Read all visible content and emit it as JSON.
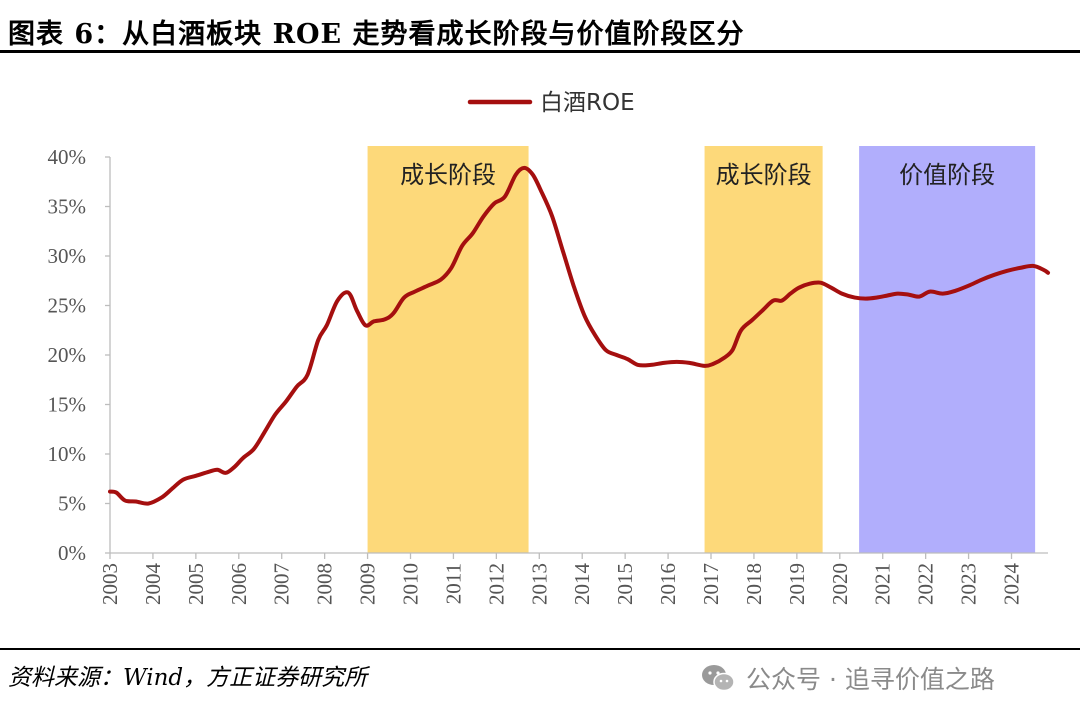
{
  "title": "图表 6：从白酒板块 ROE 走势看成长阶段与价值阶段区分",
  "source": "资料来源：Wind，方正证券研究所",
  "watermark": {
    "text": "公众号 · 追寻价值之路",
    "icon": "wechat-icon"
  },
  "chart_data": {
    "type": "line",
    "title": "",
    "xlabel": "",
    "ylabel": "",
    "xlim": [
      2003,
      2024.85
    ],
    "ylim": [
      0,
      40
    ],
    "x_ticks": [
      "2003",
      "2004",
      "2005",
      "2006",
      "2007",
      "2008",
      "2009",
      "2010",
      "2011",
      "2012",
      "2013",
      "2014",
      "2015",
      "2016",
      "2017",
      "2018",
      "2019",
      "2020",
      "2021",
      "2022",
      "2023",
      "2024"
    ],
    "y_ticks": [
      {
        "value": 0,
        "label": "0%"
      },
      {
        "value": 5,
        "label": "5%"
      },
      {
        "value": 10,
        "label": "10%"
      },
      {
        "value": 15,
        "label": "15%"
      },
      {
        "value": 20,
        "label": "20%"
      },
      {
        "value": 25,
        "label": "25%"
      },
      {
        "value": 30,
        "label": "30%"
      },
      {
        "value": 35,
        "label": "35%"
      },
      {
        "value": 40,
        "label": "40%"
      }
    ],
    "grid": false,
    "legend": {
      "position": "top-center"
    },
    "bands": [
      {
        "label": "成长阶段",
        "x0": 2009.0,
        "x1": 2012.75,
        "color": "#fdd97a"
      },
      {
        "label": "成长阶段",
        "x0": 2016.85,
        "x1": 2019.6,
        "color": "#fdd97a"
      },
      {
        "label": "价值阶段",
        "x0": 2020.45,
        "x1": 2024.55,
        "color": "#b1aefc"
      }
    ],
    "series": [
      {
        "name": "白酒ROE",
        "color": "#a50f0f",
        "points": [
          [
            2003.0,
            6.2
          ],
          [
            2003.15,
            6.1
          ],
          [
            2003.35,
            5.3
          ],
          [
            2003.6,
            5.2
          ],
          [
            2003.9,
            5.0
          ],
          [
            2004.2,
            5.6
          ],
          [
            2004.45,
            6.5
          ],
          [
            2004.7,
            7.4
          ],
          [
            2005.0,
            7.8
          ],
          [
            2005.3,
            8.2
          ],
          [
            2005.5,
            8.4
          ],
          [
            2005.7,
            8.1
          ],
          [
            2005.9,
            8.7
          ],
          [
            2006.1,
            9.6
          ],
          [
            2006.35,
            10.5
          ],
          [
            2006.6,
            12.2
          ],
          [
            2006.85,
            14.0
          ],
          [
            2007.1,
            15.3
          ],
          [
            2007.35,
            16.8
          ],
          [
            2007.6,
            18.0
          ],
          [
            2007.85,
            21.5
          ],
          [
            2008.05,
            23.0
          ],
          [
            2008.3,
            25.5
          ],
          [
            2008.55,
            26.3
          ],
          [
            2008.75,
            24.5
          ],
          [
            2008.95,
            23.0
          ],
          [
            2009.15,
            23.4
          ],
          [
            2009.4,
            23.6
          ],
          [
            2009.6,
            24.2
          ],
          [
            2009.85,
            25.8
          ],
          [
            2010.1,
            26.4
          ],
          [
            2010.4,
            27.0
          ],
          [
            2010.7,
            27.6
          ],
          [
            2010.95,
            28.8
          ],
          [
            2011.2,
            31.0
          ],
          [
            2011.45,
            32.3
          ],
          [
            2011.7,
            34.0
          ],
          [
            2011.95,
            35.3
          ],
          [
            2012.2,
            36.0
          ],
          [
            2012.45,
            38.2
          ],
          [
            2012.65,
            38.9
          ],
          [
            2012.85,
            38.2
          ],
          [
            2013.05,
            36.5
          ],
          [
            2013.3,
            34.0
          ],
          [
            2013.55,
            30.5
          ],
          [
            2013.8,
            27.0
          ],
          [
            2014.05,
            24.0
          ],
          [
            2014.3,
            22.0
          ],
          [
            2014.55,
            20.5
          ],
          [
            2014.8,
            20.0
          ],
          [
            2015.05,
            19.6
          ],
          [
            2015.3,
            19.0
          ],
          [
            2015.6,
            19.0
          ],
          [
            2015.9,
            19.2
          ],
          [
            2016.2,
            19.3
          ],
          [
            2016.5,
            19.2
          ],
          [
            2016.85,
            18.9
          ],
          [
            2017.05,
            19.1
          ],
          [
            2017.3,
            19.7
          ],
          [
            2017.5,
            20.5
          ],
          [
            2017.7,
            22.5
          ],
          [
            2017.95,
            23.5
          ],
          [
            2018.2,
            24.5
          ],
          [
            2018.45,
            25.5
          ],
          [
            2018.65,
            25.5
          ],
          [
            2018.85,
            26.2
          ],
          [
            2019.05,
            26.8
          ],
          [
            2019.3,
            27.2
          ],
          [
            2019.55,
            27.3
          ],
          [
            2019.8,
            26.8
          ],
          [
            2020.05,
            26.2
          ],
          [
            2020.35,
            25.8
          ],
          [
            2020.6,
            25.7
          ],
          [
            2020.85,
            25.8
          ],
          [
            2021.1,
            26.0
          ],
          [
            2021.35,
            26.2
          ],
          [
            2021.6,
            26.1
          ],
          [
            2021.85,
            25.9
          ],
          [
            2022.1,
            26.4
          ],
          [
            2022.4,
            26.2
          ],
          [
            2022.7,
            26.5
          ],
          [
            2023.0,
            27.0
          ],
          [
            2023.3,
            27.6
          ],
          [
            2023.6,
            28.1
          ],
          [
            2023.9,
            28.5
          ],
          [
            2024.2,
            28.8
          ],
          [
            2024.5,
            29.0
          ],
          [
            2024.75,
            28.6
          ],
          [
            2024.85,
            28.3
          ]
        ]
      }
    ]
  }
}
